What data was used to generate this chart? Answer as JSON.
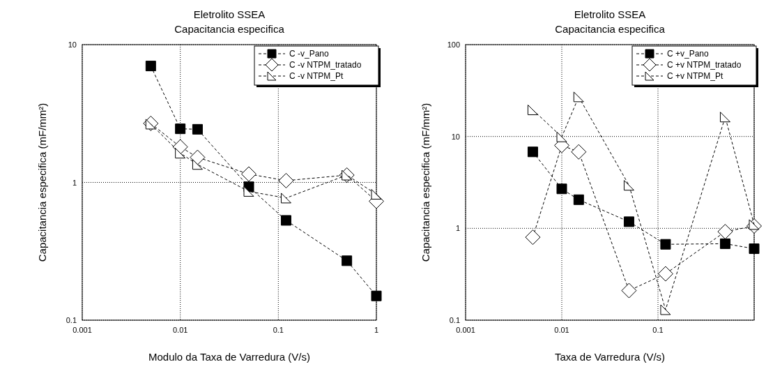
{
  "chart_data": [
    {
      "type": "line",
      "title": "Eletrolito SSEA",
      "subtitle": "Capacitancia especifica",
      "xlabel": "Modulo da Taxa de Varredura (V/s)",
      "ylabel": "Capacitancia especifica (mF/mm²)",
      "log": "xy",
      "xlim": [
        0.001,
        1
      ],
      "ylim": [
        0.1,
        10
      ],
      "xticks": [
        0.001,
        0.01,
        0.1,
        1
      ],
      "yticks": [
        0.1,
        1,
        10
      ],
      "grid": true,
      "legend": "top right",
      "line_style": "dashed",
      "x": [
        0.005,
        0.01,
        0.015,
        0.05,
        0.12,
        0.5,
        1
      ],
      "series": [
        {
          "name": "C -v_Pano",
          "color": "#000000",
          "marker": "square",
          "values": [
            7.0,
            2.45,
            2.43,
            0.93,
            0.53,
            0.27,
            0.15
          ]
        },
        {
          "name": "C -v NTPM_tratado",
          "color": "#000000",
          "marker": "diamond",
          "values": [
            2.68,
            1.81,
            1.52,
            1.15,
            1.03,
            1.13,
            0.73
          ]
        },
        {
          "name": "C -v NTPM_Pt",
          "color": "#000000",
          "marker": "triangle",
          "values": [
            2.65,
            1.63,
            1.35,
            0.86,
            0.77,
            1.13,
            0.82
          ]
        }
      ]
    },
    {
      "type": "line",
      "title": "Eletrolito SSEA",
      "subtitle": "Capacitancia especifica",
      "xlabel": "Taxa de Varredura (V/s)",
      "ylabel": "Capacitancia especifica (mF/mm²)",
      "log": "xy",
      "xlim": [
        0.001,
        1
      ],
      "ylim": [
        0.1,
        100
      ],
      "xticks": [
        0.001,
        0.01,
        0.1,
        {
          "value": 1,
          "label": null
        }
      ],
      "yticks": [
        0.1,
        1,
        10,
        100
      ],
      "grid": true,
      "legend": "top right",
      "line_style": "dashed",
      "x": [
        0.005,
        0.01,
        0.015,
        0.05,
        0.12,
        0.5,
        1
      ],
      "series": [
        {
          "name": "C +v_Pano",
          "color": "#000000",
          "marker": "square",
          "values": [
            6.8,
            2.69,
            2.05,
            1.18,
            0.67,
            0.68,
            0.6
          ]
        },
        {
          "name": "C +v NTPM_tratado",
          "color": "#000000",
          "marker": "diamond",
          "values": [
            0.8,
            8.0,
            6.8,
            0.21,
            0.32,
            0.92,
            1.06
          ]
        },
        {
          "name": "C +v NTPM_Pt",
          "color": "#000000",
          "marker": "triangle",
          "values": [
            19.5,
            9.9,
            27,
            2.94,
            0.13,
            16.3,
            1.1
          ]
        }
      ]
    }
  ]
}
